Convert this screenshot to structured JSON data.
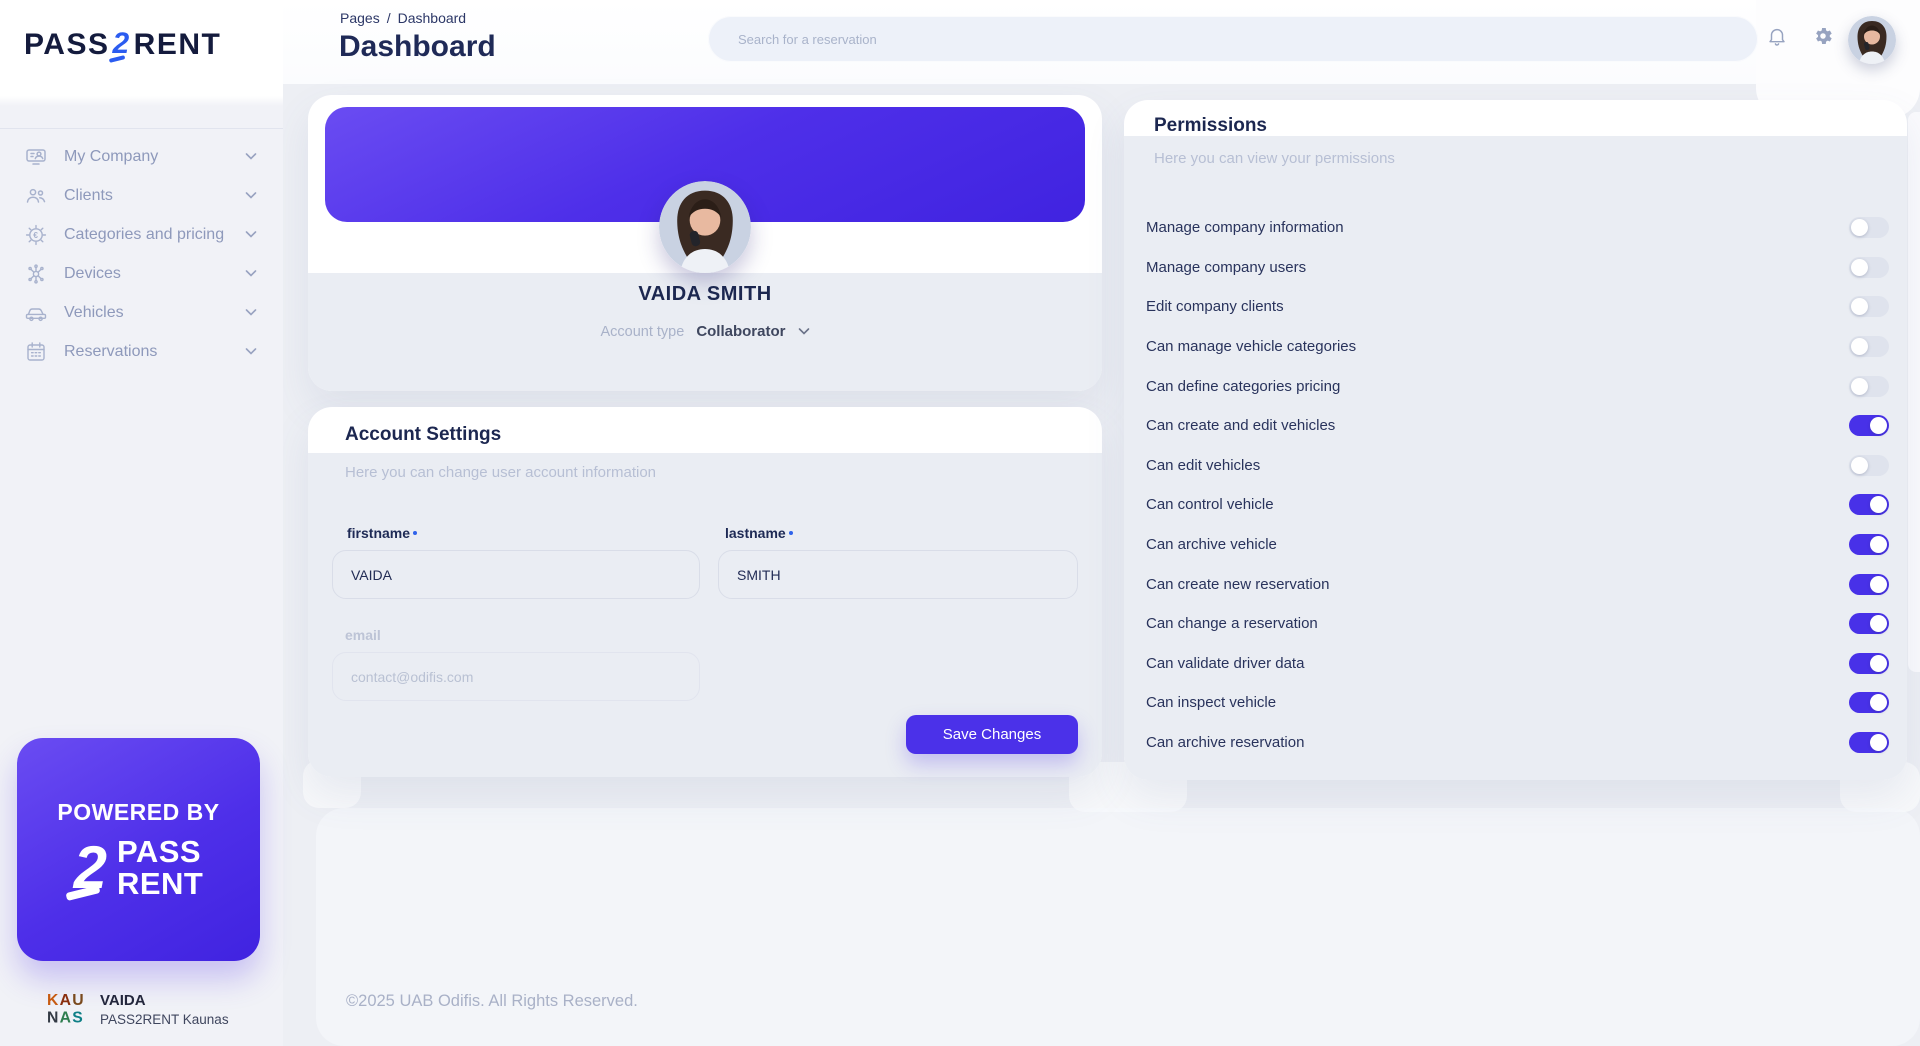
{
  "brand": {
    "logo_pass": "PASS",
    "logo_2": "2",
    "logo_rent": "RENT"
  },
  "sidebar": {
    "items": [
      {
        "label": "My Company",
        "icon": "company-icon"
      },
      {
        "label": "Clients",
        "icon": "clients-icon"
      },
      {
        "label": "Categories and pricing",
        "icon": "categories-pricing-icon"
      },
      {
        "label": "Devices",
        "icon": "devices-icon"
      },
      {
        "label": "Vehicles",
        "icon": "vehicles-icon"
      },
      {
        "label": "Reservations",
        "icon": "reservations-icon"
      }
    ],
    "powered_by": {
      "line1": "POWERED BY",
      "big2": "2",
      "pass": "PASS",
      "rent": "RENT"
    },
    "user": {
      "name": "VAIDA",
      "org": "PASS2RENT Kaunas"
    }
  },
  "header": {
    "breadcrumb_root": "Pages",
    "breadcrumb_sep": "/",
    "breadcrumb_current": "Dashboard",
    "title": "Dashboard",
    "search_placeholder": "Search for a reservation"
  },
  "profile": {
    "name": "VAIDA SMITH",
    "account_type_label": "Account type",
    "account_type_value": "Collaborator"
  },
  "account_settings": {
    "title": "Account Settings",
    "subtitle": "Here you can change user account information",
    "firstname_label": "firstname",
    "firstname_value": "VAIDA",
    "lastname_label": "lastname",
    "lastname_value": "SMITH",
    "email_label": "email",
    "email_placeholder": "contact@odifis.com",
    "save_label": "Save Changes"
  },
  "permissions": {
    "title": "Permissions",
    "subtitle": "Here you can view your permissions",
    "items": [
      {
        "label": "Manage company information",
        "enabled": false
      },
      {
        "label": "Manage company users",
        "enabled": false
      },
      {
        "label": "Edit company clients",
        "enabled": false
      },
      {
        "label": "Can manage vehicle categories",
        "enabled": false
      },
      {
        "label": "Can define categories pricing",
        "enabled": false
      },
      {
        "label": "Can create and edit vehicles",
        "enabled": true
      },
      {
        "label": "Can edit vehicles",
        "enabled": false
      },
      {
        "label": "Can control vehicle",
        "enabled": true
      },
      {
        "label": "Can archive vehicle",
        "enabled": true
      },
      {
        "label": "Can create new reservation",
        "enabled": true
      },
      {
        "label": "Can change a reservation",
        "enabled": true
      },
      {
        "label": "Can validate driver data",
        "enabled": true
      },
      {
        "label": "Can inspect vehicle",
        "enabled": true
      },
      {
        "label": "Can archive reservation",
        "enabled": true
      }
    ]
  },
  "footer": {
    "copyright": "©2025 UAB Odifis. All Rights Reserved."
  },
  "colors": {
    "primary": "#4b31e9",
    "banner_gradient_from": "#6a4cf2",
    "banner_gradient_to": "#4023e0",
    "toggle_off": "#dfe3ed",
    "page_background": "#edeff4",
    "text_navy": "#1f2a57",
    "text_muted": "#b7bfd4"
  }
}
